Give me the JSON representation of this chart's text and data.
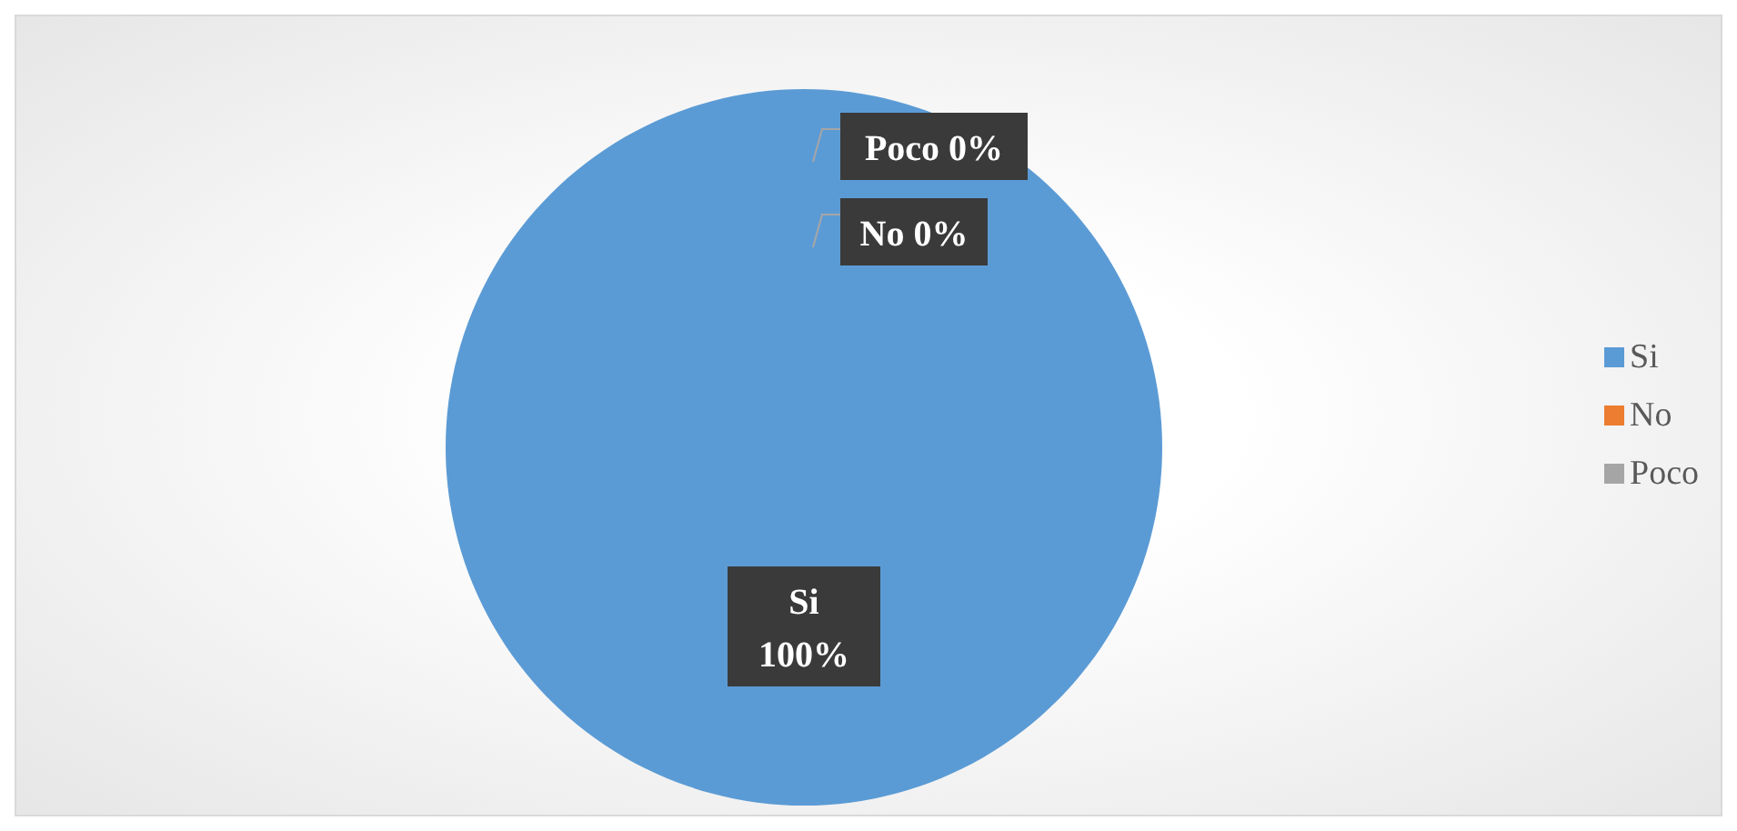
{
  "chart_data": {
    "type": "pie",
    "categories": [
      "Si",
      "No",
      "Poco"
    ],
    "values": [
      100,
      0,
      0
    ],
    "colors": [
      "#5b9bd5",
      "#ed7d31",
      "#a5a5a5"
    ],
    "value_labels": [
      "100%",
      "0%",
      "0%"
    ],
    "legend": "right"
  }
}
